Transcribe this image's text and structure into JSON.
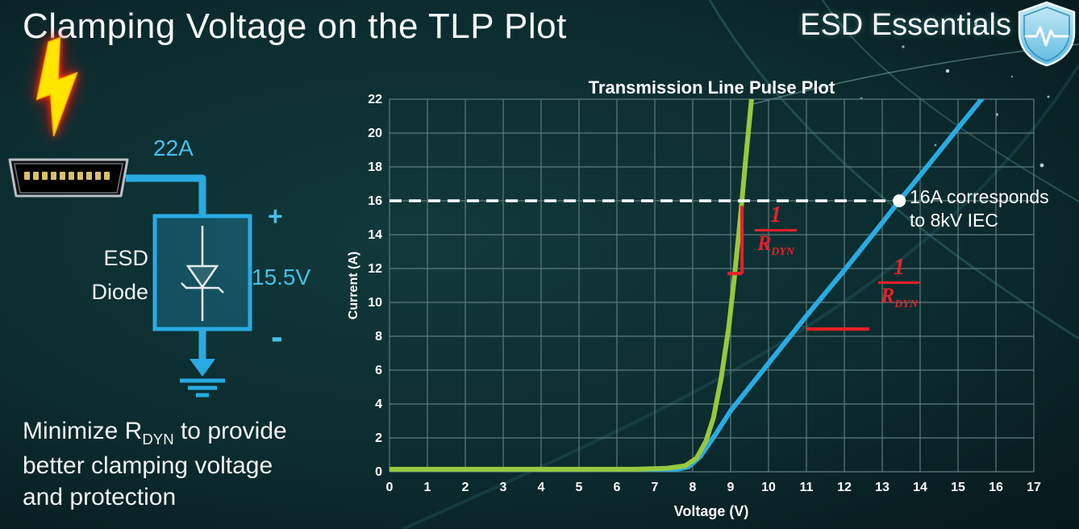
{
  "slide": {
    "title": "Clamping Voltage on the TLP Plot",
    "brand": "ESD Essentials"
  },
  "circuit": {
    "surge_current": "22A",
    "device_line1": "ESD",
    "device_line2": "Diode",
    "plus_sign": "+",
    "minus_sign": "-",
    "clamp_voltage": "15.5V"
  },
  "footer": {
    "line1_pre": "Minimize R",
    "line1_sub": "DYN",
    "line1_post": " to provide",
    "line2": "better clamping voltage",
    "line3": "and protection"
  },
  "chart_data": {
    "type": "line",
    "title": "Transmission Line Pulse Plot",
    "xlabel": "Voltage (V)",
    "ylabel": "Current (A)",
    "xlim": [
      0,
      17
    ],
    "ylim": [
      0,
      22
    ],
    "x_tick_step": 1,
    "y_tick_step": 2,
    "grid": true,
    "legend": "none",
    "colors": {
      "grid": "#5d7d7d",
      "green": "#97c93d",
      "blue": "#29abe2",
      "red": "#e8202a",
      "threshold": "#ffffff"
    },
    "series": [
      {
        "name": "green-curve-low-rdyn",
        "color": "#97c93d",
        "points": [
          [
            0,
            0.15
          ],
          [
            6.5,
            0.15
          ],
          [
            7.3,
            0.2
          ],
          [
            7.8,
            0.35
          ],
          [
            8.1,
            0.8
          ],
          [
            8.35,
            1.8
          ],
          [
            8.55,
            3.2
          ],
          [
            8.75,
            5.5
          ],
          [
            8.95,
            8.5
          ],
          [
            9.1,
            11.5
          ],
          [
            9.25,
            14.8
          ],
          [
            9.4,
            18.5
          ],
          [
            9.55,
            22
          ]
        ]
      },
      {
        "name": "blue-curve-high-rdyn",
        "color": "#29abe2",
        "points": [
          [
            0,
            0.1
          ],
          [
            7.5,
            0.1
          ],
          [
            7.9,
            0.3
          ],
          [
            8.2,
            0.9
          ],
          [
            8.6,
            2.2
          ],
          [
            9.0,
            3.6
          ],
          [
            9.5,
            5.0
          ],
          [
            10,
            6.4
          ],
          [
            11,
            9.2
          ],
          [
            12,
            11.9
          ],
          [
            13,
            14.7
          ],
          [
            13.45,
            16
          ],
          [
            14,
            17.5
          ],
          [
            15,
            20.3
          ],
          [
            15.62,
            22
          ]
        ]
      }
    ],
    "threshold": {
      "current": 16,
      "marker_point": [
        13.45,
        16
      ],
      "label_line1": "16A corresponds",
      "label_line2": "to 8kV IEC"
    },
    "slope_annotations": [
      {
        "target": "green-curve",
        "numerator": "1",
        "denominator": "R",
        "denominator_sub": "DYN",
        "lines": [
          [
            9.3,
            11.7,
            9.3,
            15.7
          ],
          [
            8.92,
            11.7,
            9.3,
            11.7
          ]
        ]
      },
      {
        "target": "blue-curve",
        "numerator": "1",
        "denominator": "R",
        "denominator_sub": "DYN",
        "lines": [
          [
            11,
            8.43,
            12.66,
            8.43
          ]
        ]
      }
    ]
  }
}
